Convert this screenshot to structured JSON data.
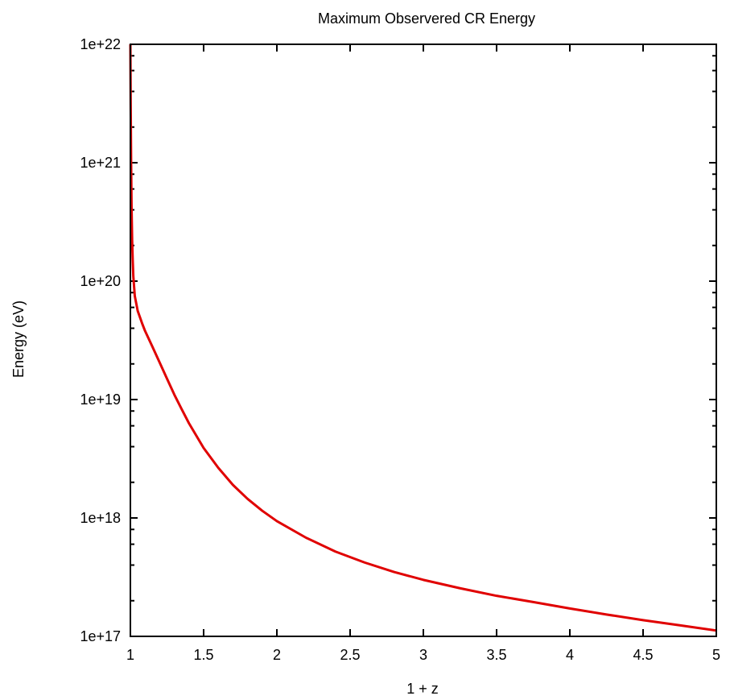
{
  "chart_data": {
    "type": "line",
    "title": "Maximum Observered CR Energy",
    "xlabel": "1 + z",
    "ylabel": "Energy (eV)",
    "xlim": [
      1,
      5
    ],
    "ylim": [
      1e+17,
      1e+22
    ],
    "yscale": "log",
    "grid": false,
    "legend": "none",
    "x_ticks": [
      {
        "value": 1,
        "label": "1"
      },
      {
        "value": 1.5,
        "label": "1.5"
      },
      {
        "value": 2,
        "label": "2"
      },
      {
        "value": 2.5,
        "label": "2.5"
      },
      {
        "value": 3,
        "label": "3"
      },
      {
        "value": 3.5,
        "label": "3.5"
      },
      {
        "value": 4,
        "label": "4"
      },
      {
        "value": 4.5,
        "label": "4.5"
      },
      {
        "value": 5,
        "label": "5"
      }
    ],
    "y_ticks": [
      {
        "value": 1e+17,
        "label": "1e+17"
      },
      {
        "value": 1e+18,
        "label": "1e+18"
      },
      {
        "value": 1e+19,
        "label": "1e+19"
      },
      {
        "value": 1e+20,
        "label": "1e+20"
      },
      {
        "value": 1e+21,
        "label": "1e+21"
      },
      {
        "value": 1e+22,
        "label": "1e+22"
      }
    ],
    "series": [
      {
        "color": "#e00000",
        "x": [
          1.0,
          1.002,
          1.005,
          1.008,
          1.012,
          1.016,
          1.02,
          1.03,
          1.05,
          1.08,
          1.1,
          1.15,
          1.2,
          1.25,
          1.3,
          1.35,
          1.4,
          1.5,
          1.6,
          1.7,
          1.8,
          1.9,
          2.0,
          2.2,
          2.4,
          2.6,
          2.8,
          3.0,
          3.25,
          3.5,
          3.75,
          4.0,
          4.25,
          4.5,
          4.75,
          5.0
        ],
        "y": [
          1e+22,
          3.2e+21,
          1e+21,
          4.2e+20,
          2.2e+20,
          1.5e+20,
          1.1e+20,
          7.5e+19,
          5.6e+19,
          4.4e+19,
          3.8e+19,
          2.8e+19,
          2.05e+19,
          1.5e+19,
          1.1e+19,
          8.3e+18,
          6.3e+18,
          3.9e+18,
          2.65e+18,
          1.9e+18,
          1.45e+18,
          1.15e+18,
          9.4e+17,
          6.8e+17,
          5.2e+17,
          4.2e+17,
          3.5e+17,
          3e+17,
          2.55e+17,
          2.2e+17,
          1.95e+17,
          1.72e+17,
          1.53e+17,
          1.37e+17,
          1.24e+17,
          1.12e+17
        ]
      }
    ]
  }
}
